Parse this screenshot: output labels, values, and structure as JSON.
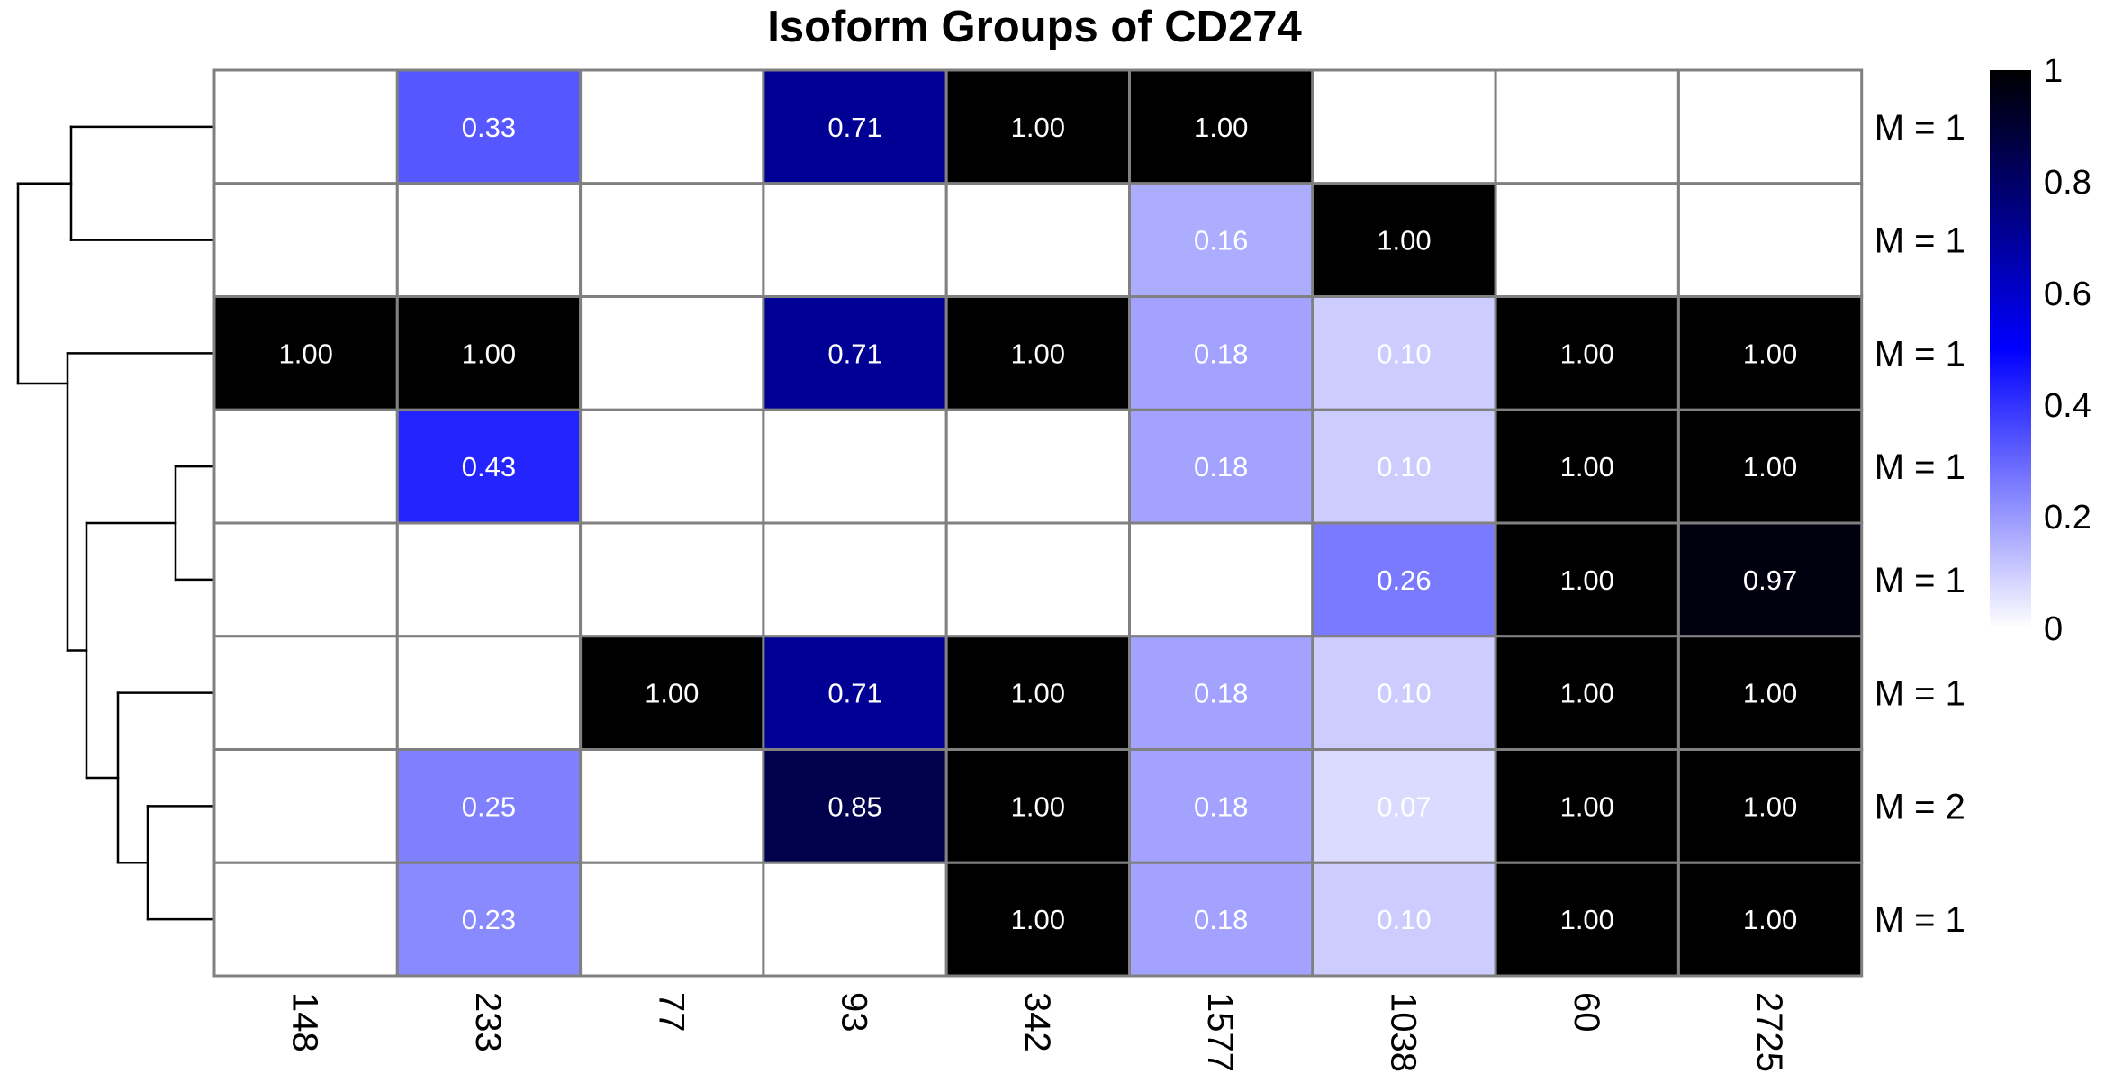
{
  "chart_data": {
    "type": "heatmap",
    "title": "Isoform Groups of CD274",
    "columns": [
      "148",
      "233",
      "77",
      "93",
      "342",
      "1577",
      "1038",
      "60",
      "2725"
    ],
    "row_labels": [
      "M = 1",
      "M = 1",
      "M = 1",
      "M = 1",
      "M = 1",
      "M = 1",
      "M = 2",
      "M = 1"
    ],
    "values": [
      [
        null,
        0.33,
        null,
        0.71,
        1.0,
        1.0,
        null,
        null,
        null
      ],
      [
        null,
        null,
        null,
        null,
        null,
        0.16,
        1.0,
        null,
        null
      ],
      [
        1.0,
        1.0,
        null,
        0.71,
        1.0,
        0.18,
        0.1,
        1.0,
        1.0
      ],
      [
        null,
        0.43,
        null,
        null,
        null,
        0.18,
        0.1,
        1.0,
        1.0
      ],
      [
        null,
        null,
        null,
        null,
        null,
        null,
        0.26,
        1.0,
        0.97
      ],
      [
        null,
        null,
        1.0,
        0.71,
        1.0,
        0.18,
        0.1,
        1.0,
        1.0
      ],
      [
        null,
        0.25,
        null,
        0.85,
        1.0,
        0.18,
        0.07,
        1.0,
        1.0
      ],
      [
        null,
        0.23,
        null,
        null,
        1.0,
        0.18,
        0.1,
        1.0,
        1.0
      ]
    ],
    "labels": [
      [
        null,
        "0.33",
        null,
        "0.71",
        "1.00",
        "1.00",
        null,
        null,
        null
      ],
      [
        null,
        null,
        null,
        null,
        null,
        "0.16",
        "1.00",
        null,
        null
      ],
      [
        "1.00",
        "1.00",
        null,
        "0.71",
        "1.00",
        "0.18",
        "0.10",
        "1.00",
        "1.00"
      ],
      [
        null,
        "0.43",
        null,
        null,
        null,
        "0.18",
        "0.10",
        "1.00",
        "1.00"
      ],
      [
        null,
        null,
        null,
        null,
        null,
        null,
        "0.26",
        "1.00",
        "0.97"
      ],
      [
        null,
        null,
        "1.00",
        "0.71",
        "1.00",
        "0.18",
        "0.10",
        "1.00",
        "1.00"
      ],
      [
        null,
        "0.25",
        null,
        "0.85",
        "1.00",
        "0.18",
        "0.07",
        "1.00",
        "1.00"
      ],
      [
        null,
        "0.23",
        null,
        null,
        "1.00",
        "0.18",
        "0.10",
        "1.00",
        "1.00"
      ]
    ],
    "color_scale": {
      "range": [
        0,
        1
      ],
      "ticks": [
        "1",
        "0.8",
        "0.6",
        "0.4",
        "0.2",
        "0"
      ],
      "tick_values": [
        1,
        0.8,
        0.6,
        0.4,
        0.2,
        0
      ],
      "colors": [
        "#ffffff",
        "#0000ff",
        "#000000"
      ]
    },
    "row_dendrogram": true,
    "grid": true,
    "legend_position": "right",
    "empty_cell_color": "#ffffff",
    "cell_border_color": "#808080",
    "cell_text_color": "#ffffff"
  }
}
